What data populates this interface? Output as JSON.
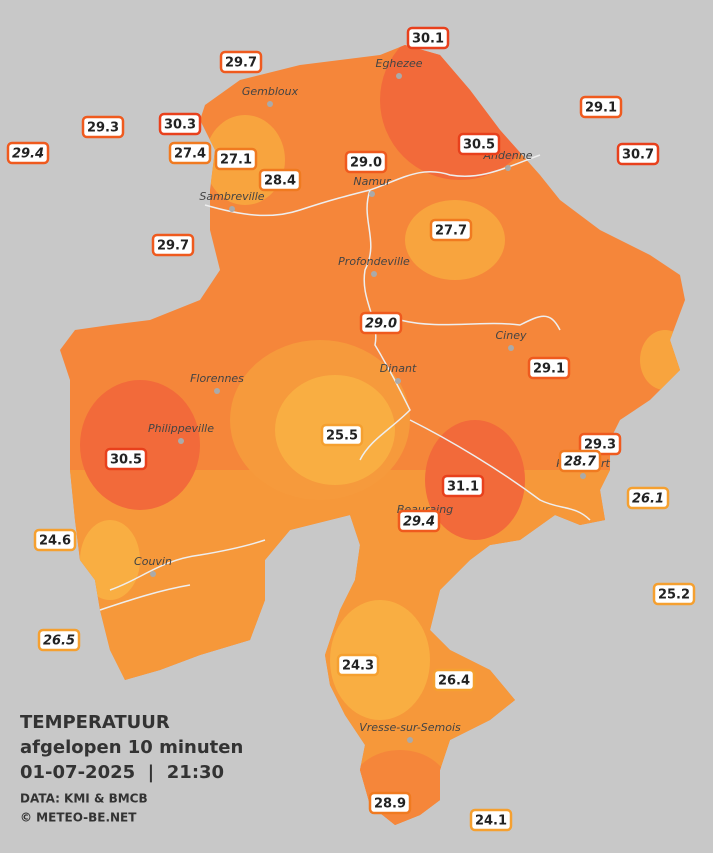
{
  "title": [
    "TEMPERATUUR",
    "afgelopen 10 minuten",
    "01-07-2025  |  21:30"
  ],
  "credits": [
    "DATA: KMI & BMCB",
    "© METEO-BE.NET"
  ],
  "cities": [
    "Eghezee",
    "Gembloux",
    "Andenne",
    "Namur",
    "Sambreville",
    "Profondeville",
    "Ciney",
    "Florennes",
    "Dinant",
    "Philippeville",
    "Beauraing",
    "Rochefort",
    "Couvin",
    "Vresse-sur-Semois"
  ],
  "stations": [
    {
      "value": "30.1"
    },
    {
      "value": "29.7"
    },
    {
      "value": "29.1"
    },
    {
      "value": "29.3"
    },
    {
      "value": "30.3"
    },
    {
      "value": "29.4",
      "italic": true
    },
    {
      "value": "27.4"
    },
    {
      "value": "27.1"
    },
    {
      "value": "30.5"
    },
    {
      "value": "30.7"
    },
    {
      "value": "29.0"
    },
    {
      "value": "28.4"
    },
    {
      "value": "27.7"
    },
    {
      "value": "29.7"
    },
    {
      "value": "29.0",
      "italic": true
    },
    {
      "value": "29.1"
    },
    {
      "value": "25.5"
    },
    {
      "value": "30.5"
    },
    {
      "value": "29.3"
    },
    {
      "value": "28.7",
      "italic": true
    },
    {
      "value": "31.1"
    },
    {
      "value": "26.1",
      "italic": true
    },
    {
      "value": "29.4",
      "italic": true
    },
    {
      "value": "24.6"
    },
    {
      "value": "25.2"
    },
    {
      "value": "26.5",
      "italic": true
    },
    {
      "value": "24.3"
    },
    {
      "value": "26.4"
    },
    {
      "value": "28.9"
    },
    {
      "value": "24.1"
    }
  ]
}
